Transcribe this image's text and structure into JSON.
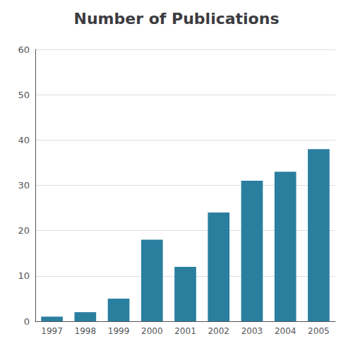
{
  "chart_data": {
    "type": "bar",
    "title": "Number of Publications",
    "categories": [
      "1997",
      "1998",
      "1999",
      "2000",
      "2001",
      "2002",
      "2003",
      "2004",
      "2005"
    ],
    "values": [
      1,
      2,
      5,
      18,
      12,
      24,
      31,
      33,
      38
    ],
    "color": "#2a7f9f",
    "ylim": [
      0,
      60
    ],
    "yticks": [
      0,
      10,
      20,
      30,
      40,
      50,
      60
    ],
    "grid": true
  }
}
